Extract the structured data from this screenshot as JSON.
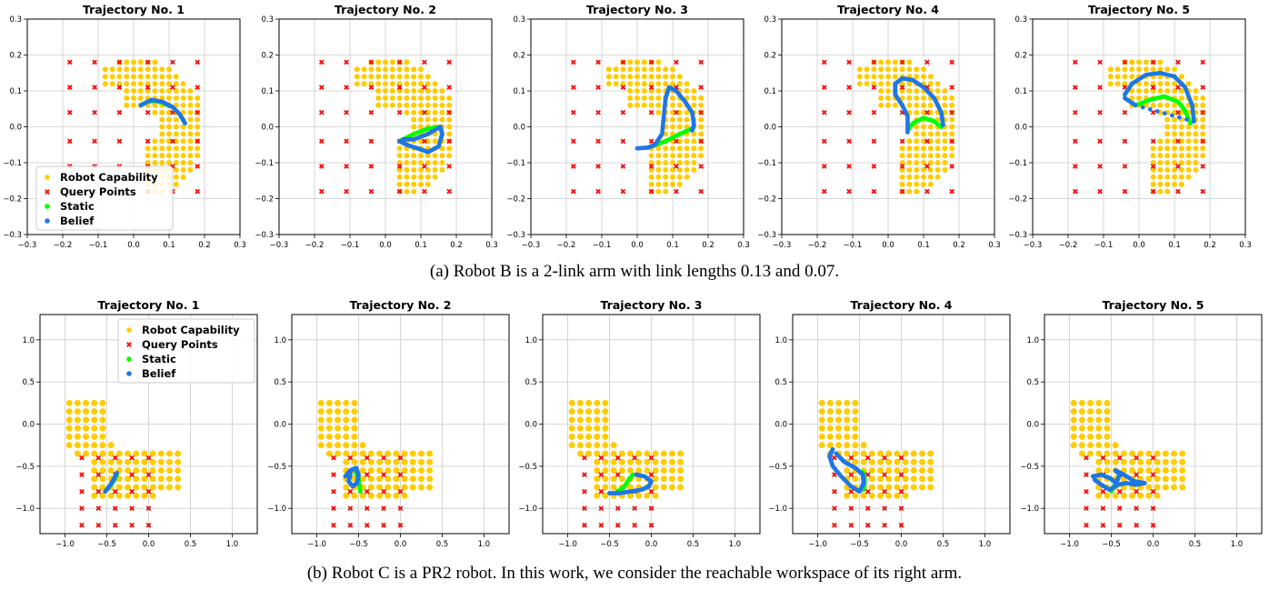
{
  "colors": {
    "capability": "#ffcc00",
    "query": "#ff0000",
    "static": "#00ff00",
    "belief": "#1f77e4",
    "grid": "#cccccc"
  },
  "legend_labels": [
    "Robot Capability",
    "Query Points",
    "Static",
    "Belief"
  ],
  "captions": {
    "a": "(a) Robot B is a 2-link arm with link lengths 0.13 and 0.07.",
    "b": "(b) Robot C is a PR2 robot. In this work, we consider the reachable workspace of its right arm."
  },
  "chart_data": [
    {
      "type": "scatter",
      "row": "a",
      "title": "Trajectory No. 1",
      "xlim": [
        -0.3,
        0.3
      ],
      "ylim": [
        -0.3,
        0.3
      ],
      "xticks": [
        "−0.3",
        "−0.2",
        "−0.1",
        "0.0",
        "0.1",
        "0.2",
        "0.3"
      ],
      "yticks": [
        "−0.3",
        "−0.2",
        "−0.1",
        "0.0",
        "0.1",
        "0.2",
        "0.3"
      ],
      "grid": true,
      "legend": "lower-left",
      "series": [
        {
          "name": "Static",
          "points": [
            [
              0.02,
              0.06
            ],
            [
              0.04,
              0.07
            ],
            [
              0.06,
              0.072
            ],
            [
              0.08,
              0.068
            ],
            [
              0.1,
              0.058
            ]
          ]
        },
        {
          "name": "Belief",
          "points": [
            [
              0.02,
              0.06
            ],
            [
              0.05,
              0.075
            ],
            [
              0.08,
              0.07
            ],
            [
              0.11,
              0.055
            ],
            [
              0.13,
              0.035
            ],
            [
              0.145,
              0.01
            ]
          ]
        }
      ]
    },
    {
      "type": "scatter",
      "row": "a",
      "title": "Trajectory No. 2",
      "xlim": [
        -0.3,
        0.3
      ],
      "ylim": [
        -0.3,
        0.3
      ],
      "xticks": [
        "−0.3",
        "−0.2",
        "−0.1",
        "0.0",
        "0.1",
        "0.2",
        "0.3"
      ],
      "yticks": [
        "−0.3",
        "−0.2",
        "−0.1",
        "0.0",
        "0.1",
        "0.2",
        "0.3"
      ],
      "grid": true,
      "series": [
        {
          "name": "Static",
          "points": [
            [
              0.04,
              -0.04
            ],
            [
              0.08,
              -0.02
            ],
            [
              0.12,
              -0.005
            ],
            [
              0.155,
              0.0
            ]
          ]
        },
        {
          "name": "Belief",
          "points": [
            [
              0.04,
              -0.04
            ],
            [
              0.06,
              -0.05
            ],
            [
              0.09,
              -0.06
            ],
            [
              0.12,
              -0.07
            ],
            [
              0.15,
              -0.055
            ],
            [
              0.16,
              -0.02
            ],
            [
              0.155,
              0.0
            ],
            [
              0.12,
              -0.02
            ],
            [
              0.08,
              -0.035
            ],
            [
              0.05,
              -0.035
            ]
          ]
        }
      ]
    },
    {
      "type": "scatter",
      "row": "a",
      "title": "Trajectory No. 3",
      "xlim": [
        -0.3,
        0.3
      ],
      "ylim": [
        -0.3,
        0.3
      ],
      "xticks": [
        "−0.3",
        "−0.2",
        "−0.1",
        "0.0",
        "0.1",
        "0.2",
        "0.3"
      ],
      "yticks": [
        "−0.3",
        "−0.2",
        "−0.1",
        "0.0",
        "0.1",
        "0.2",
        "0.3"
      ],
      "grid": true,
      "series": [
        {
          "name": "Static",
          "points": [
            [
              0.04,
              -0.055
            ],
            [
              0.08,
              -0.04
            ],
            [
              0.12,
              -0.02
            ],
            [
              0.155,
              -0.005
            ]
          ]
        },
        {
          "name": "Belief",
          "points": [
            [
              0.0,
              -0.06
            ],
            [
              0.03,
              -0.058
            ],
            [
              0.05,
              -0.05
            ],
            [
              0.07,
              -0.02
            ],
            [
              0.075,
              0.03
            ],
            [
              0.08,
              0.08
            ],
            [
              0.09,
              0.11
            ],
            [
              0.11,
              0.1
            ],
            [
              0.135,
              0.07
            ],
            [
              0.155,
              0.04
            ],
            [
              0.16,
              0.005
            ],
            [
              0.155,
              -0.01
            ]
          ]
        }
      ]
    },
    {
      "type": "scatter",
      "row": "a",
      "title": "Trajectory No. 4",
      "xlim": [
        -0.3,
        0.3
      ],
      "ylim": [
        -0.3,
        0.3
      ],
      "xticks": [
        "−0.3",
        "−0.2",
        "−0.1",
        "0.0",
        "0.1",
        "0.2",
        "0.3"
      ],
      "yticks": [
        "−0.3",
        "−0.2",
        "−0.1",
        "0.0",
        "0.1",
        "0.2",
        "0.3"
      ],
      "grid": true,
      "series": [
        {
          "name": "Static",
          "points": [
            [
              0.055,
              -0.01
            ],
            [
              0.07,
              0.01
            ],
            [
              0.1,
              0.025
            ],
            [
              0.13,
              0.015
            ],
            [
              0.15,
              0.0
            ]
          ]
        },
        {
          "name": "Belief",
          "points": [
            [
              0.055,
              -0.015
            ],
            [
              0.055,
              0.03
            ],
            [
              0.04,
              0.06
            ],
            [
              0.02,
              0.09
            ],
            [
              0.02,
              0.12
            ],
            [
              0.04,
              0.135
            ],
            [
              0.07,
              0.13
            ],
            [
              0.1,
              0.11
            ],
            [
              0.13,
              0.08
            ],
            [
              0.15,
              0.04
            ],
            [
              0.155,
              0.005
            ]
          ]
        }
      ]
    },
    {
      "type": "scatter",
      "row": "a",
      "title": "Trajectory No. 5",
      "xlim": [
        -0.3,
        0.3
      ],
      "ylim": [
        -0.3,
        0.3
      ],
      "xticks": [
        "−0.3",
        "−0.2",
        "−0.1",
        "0.0",
        "0.1",
        "0.2",
        "0.3"
      ],
      "yticks": [
        "−0.3",
        "−0.2",
        "−0.1",
        "0.0",
        "0.1",
        "0.2",
        "0.3"
      ],
      "grid": true,
      "series": [
        {
          "name": "Static",
          "points": [
            [
              -0.01,
              0.06
            ],
            [
              0.03,
              0.075
            ],
            [
              0.07,
              0.085
            ],
            [
              0.11,
              0.07
            ],
            [
              0.13,
              0.045
            ],
            [
              0.145,
              0.01
            ]
          ]
        },
        {
          "name": "Belief",
          "points": [
            [
              -0.04,
              0.09
            ],
            [
              -0.02,
              0.12
            ],
            [
              0.02,
              0.145
            ],
            [
              0.06,
              0.15
            ],
            [
              0.1,
              0.14
            ],
            [
              0.13,
              0.11
            ],
            [
              0.15,
              0.06
            ],
            [
              0.155,
              0.015
            ],
            [
              -0.01,
              0.06
            ],
            [
              -0.04,
              0.08
            ]
          ]
        }
      ]
    },
    {
      "type": "scatter",
      "row": "b",
      "title": "Trajectory No. 1",
      "xlim": [
        -1.3,
        1.3
      ],
      "ylim": [
        -1.3,
        1.3
      ],
      "xticks": [
        "−1.0",
        "−0.5",
        "0.0",
        "0.5",
        "1.0"
      ],
      "yticks": [
        "−1.0",
        "−0.5",
        "0.0",
        "0.5",
        "1.0"
      ],
      "grid": true,
      "legend": "upper-right",
      "series": [
        {
          "name": "Static",
          "points": [
            [
              -0.5,
              -0.78
            ],
            [
              -0.45,
              -0.72
            ],
            [
              -0.4,
              -0.65
            ],
            [
              -0.38,
              -0.6
            ]
          ]
        },
        {
          "name": "Belief",
          "points": [
            [
              -0.52,
              -0.8
            ],
            [
              -0.47,
              -0.74
            ],
            [
              -0.42,
              -0.66
            ],
            [
              -0.38,
              -0.58
            ]
          ]
        }
      ]
    },
    {
      "type": "scatter",
      "row": "b",
      "title": "Trajectory No. 2",
      "xlim": [
        -1.3,
        1.3
      ],
      "ylim": [
        -1.3,
        1.3
      ],
      "xticks": [
        "−1.0",
        "−0.5",
        "0.0",
        "0.5",
        "1.0"
      ],
      "yticks": [
        "−1.0",
        "−0.5",
        "0.0",
        "0.5",
        "1.0"
      ],
      "grid": true,
      "series": [
        {
          "name": "Static",
          "points": [
            [
              -0.55,
              -0.55
            ],
            [
              -0.5,
              -0.65
            ],
            [
              -0.48,
              -0.8
            ]
          ]
        },
        {
          "name": "Belief",
          "points": [
            [
              -0.66,
              -0.62
            ],
            [
              -0.6,
              -0.55
            ],
            [
              -0.53,
              -0.52
            ],
            [
              -0.5,
              -0.6
            ],
            [
              -0.52,
              -0.7
            ],
            [
              -0.57,
              -0.74
            ],
            [
              -0.62,
              -0.68
            ],
            [
              -0.6,
              -0.6
            ]
          ]
        }
      ]
    },
    {
      "type": "scatter",
      "row": "b",
      "title": "Trajectory No. 3",
      "xlim": [
        -1.3,
        1.3
      ],
      "ylim": [
        -1.3,
        1.3
      ],
      "xticks": [
        "−1.0",
        "−0.5",
        "0.0",
        "0.5",
        "1.0"
      ],
      "yticks": [
        "−1.0",
        "−0.5",
        "0.0",
        "0.5",
        "1.0"
      ],
      "grid": true,
      "series": [
        {
          "name": "Static",
          "points": [
            [
              -0.4,
              -0.8
            ],
            [
              -0.32,
              -0.74
            ],
            [
              -0.27,
              -0.66
            ],
            [
              -0.22,
              -0.6
            ]
          ]
        },
        {
          "name": "Belief",
          "points": [
            [
              -0.5,
              -0.82
            ],
            [
              -0.38,
              -0.82
            ],
            [
              -0.25,
              -0.8
            ],
            [
              -0.12,
              -0.78
            ],
            [
              -0.03,
              -0.74
            ],
            [
              0.0,
              -0.68
            ],
            [
              -0.08,
              -0.62
            ],
            [
              -0.18,
              -0.6
            ]
          ]
        }
      ]
    },
    {
      "type": "scatter",
      "row": "b",
      "title": "Trajectory No. 4",
      "xlim": [
        -1.3,
        1.3
      ],
      "ylim": [
        -1.3,
        1.3
      ],
      "xticks": [
        "−1.0",
        "−0.5",
        "0.0",
        "0.5",
        "1.0"
      ],
      "yticks": [
        "−1.0",
        "−0.5",
        "0.0",
        "0.5",
        "1.0"
      ],
      "grid": true,
      "series": [
        {
          "name": "Static",
          "points": [
            [
              -0.45,
              -0.78
            ],
            [
              -0.44,
              -0.7
            ],
            [
              -0.44,
              -0.62
            ],
            [
              -0.46,
              -0.57
            ]
          ]
        },
        {
          "name": "Belief",
          "points": [
            [
              -0.82,
              -0.3
            ],
            [
              -0.86,
              -0.38
            ],
            [
              -0.82,
              -0.5
            ],
            [
              -0.72,
              -0.62
            ],
            [
              -0.6,
              -0.74
            ],
            [
              -0.5,
              -0.8
            ],
            [
              -0.45,
              -0.7
            ],
            [
              -0.46,
              -0.6
            ],
            [
              -0.55,
              -0.52
            ],
            [
              -0.68,
              -0.45
            ],
            [
              -0.78,
              -0.35
            ]
          ]
        }
      ]
    },
    {
      "type": "scatter",
      "row": "b",
      "title": "Trajectory No. 5",
      "xlim": [
        -1.3,
        1.3
      ],
      "ylim": [
        -1.3,
        1.3
      ],
      "xticks": [
        "−1.0",
        "−0.5",
        "0.0",
        "0.5",
        "1.0"
      ],
      "yticks": [
        "−1.0",
        "−0.5",
        "0.0",
        "0.5",
        "1.0"
      ],
      "grid": true,
      "series": [
        {
          "name": "Static",
          "points": [
            [
              -0.5,
              -0.8
            ],
            [
              -0.45,
              -0.7
            ],
            [
              -0.4,
              -0.6
            ]
          ]
        },
        {
          "name": "Belief",
          "points": [
            [
              -0.72,
              -0.62
            ],
            [
              -0.62,
              -0.6
            ],
            [
              -0.52,
              -0.64
            ],
            [
              -0.44,
              -0.7
            ],
            [
              -0.4,
              -0.6
            ],
            [
              -0.45,
              -0.55
            ],
            [
              -0.35,
              -0.6
            ],
            [
              -0.22,
              -0.68
            ],
            [
              -0.1,
              -0.7
            ],
            [
              -0.2,
              -0.72
            ],
            [
              -0.32,
              -0.7
            ],
            [
              -0.42,
              -0.72
            ],
            [
              -0.52,
              -0.78
            ],
            [
              -0.62,
              -0.72
            ],
            [
              -0.7,
              -0.66
            ]
          ]
        }
      ]
    }
  ]
}
